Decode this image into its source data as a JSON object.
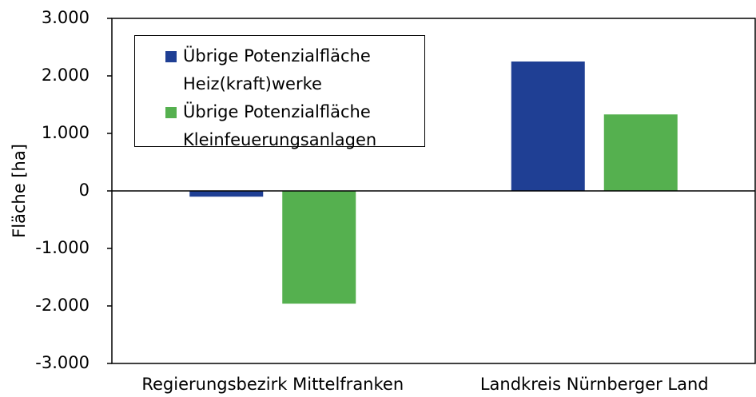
{
  "chart_data": {
    "type": "bar",
    "y_label": "Fläche [ha]",
    "categories": [
      "Regierungsbezirk Mittelfranken",
      "Landkreis Nürnberger Land"
    ],
    "series": [
      {
        "name": "Übrige Potenzialfläche Heiz(kraft)werke",
        "color": "#1f3f94",
        "values": [
          -100,
          2250
        ]
      },
      {
        "name": "Übrige Potenzialfläche Kleinfeuerungsanlagen",
        "color": "#55b04f",
        "values": [
          -1960,
          1330
        ]
      }
    ],
    "ylim": [
      -3000,
      3000
    ],
    "yticks": [
      {
        "value": -3000,
        "label": "-3.000"
      },
      {
        "value": -2000,
        "label": "-2.000"
      },
      {
        "value": -1000,
        "label": "-1.000"
      },
      0,
      {
        "value": 1000,
        "label": "1.000"
      },
      {
        "value": 2000,
        "label": "2.000"
      },
      {
        "value": 3000,
        "label": "3.000"
      }
    ],
    "grid": false,
    "legend": "upper left"
  }
}
